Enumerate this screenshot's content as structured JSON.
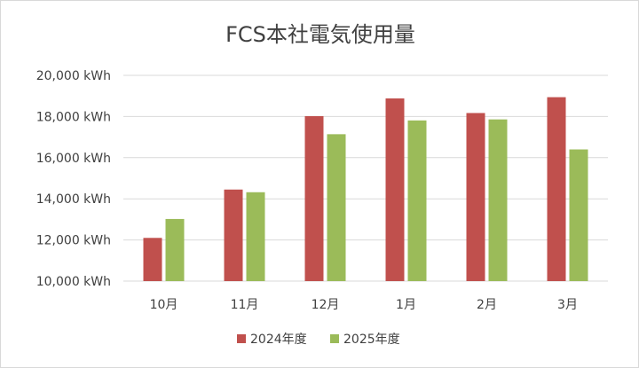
{
  "chart_data": {
    "type": "bar",
    "title": "FCS本社電気使用量",
    "categories": [
      "10月",
      "11月",
      "12月",
      "1月",
      "2月",
      "3月"
    ],
    "series": [
      {
        "name": "2024年度",
        "color": "#c0504d",
        "values": [
          12100,
          14450,
          18020,
          18880,
          18170,
          18940
        ]
      },
      {
        "name": "2025年度",
        "color": "#9bbb59",
        "values": [
          13020,
          14320,
          17140,
          17810,
          17860,
          16400
        ]
      }
    ],
    "ylim": [
      10000,
      20000
    ],
    "yticks": [
      {
        "value": 10000,
        "label": "10,000 kWh"
      },
      {
        "value": 12000,
        "label": "12,000 kWh"
      },
      {
        "value": 14000,
        "label": "14,000 kWh"
      },
      {
        "value": 16000,
        "label": "16,000 kWh"
      },
      {
        "value": 18000,
        "label": "18,000 kWh"
      },
      {
        "value": 20000,
        "label": "20,000 kWh"
      }
    ],
    "grid": true,
    "legend": "bottom-center"
  }
}
